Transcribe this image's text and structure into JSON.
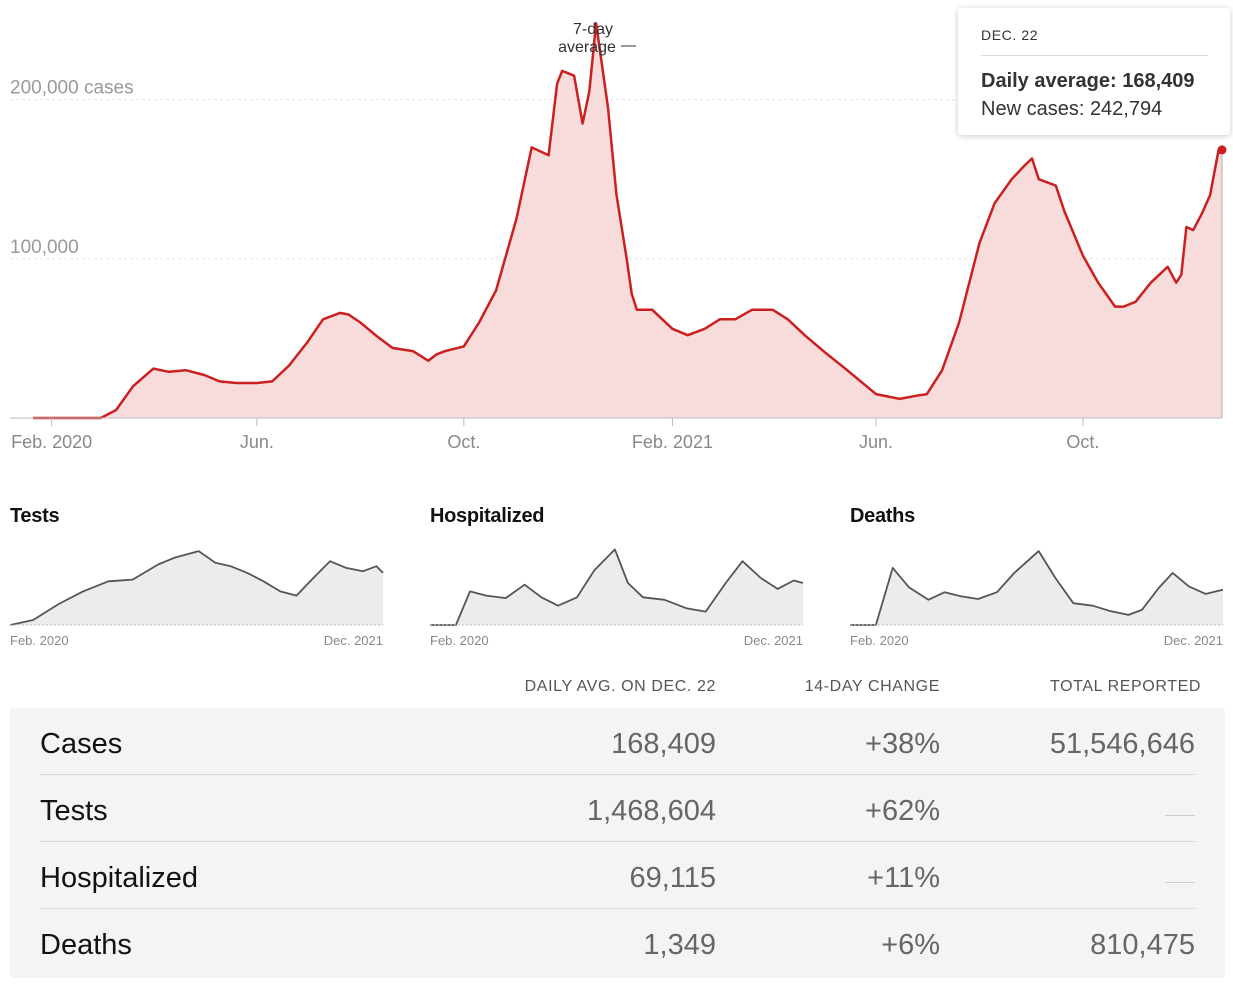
{
  "main_chart": {
    "y_ticks": [
      {
        "value": 200000,
        "label": "200,000 cases"
      },
      {
        "value": 100000,
        "label": "100,000"
      }
    ],
    "x_ticks": [
      {
        "date": "2020-02-01",
        "label": "Feb. 2020"
      },
      {
        "date": "2020-06-01",
        "label": "Jun."
      },
      {
        "date": "2020-10-01",
        "label": "Oct."
      },
      {
        "date": "2021-02-01",
        "label": "Feb. 2021"
      },
      {
        "date": "2021-06-01",
        "label": "Jun."
      },
      {
        "date": "2021-10-01",
        "label": "Oct."
      }
    ],
    "annotation": {
      "line1": "7-day",
      "line2": "average"
    },
    "colors": {
      "line": "#cc1f1f",
      "fill": "#f8dcdc",
      "grid": "#e2e2e2",
      "axis": "#bbbbbb"
    }
  },
  "tooltip": {
    "date": "DEC. 22",
    "avg_label": "Daily average:",
    "avg_value": "168,409",
    "new_label": "New cases:",
    "new_value": "242,794"
  },
  "small_charts": [
    {
      "title": "Tests",
      "start_label": "Feb. 2020",
      "end_label": "Dec. 2021"
    },
    {
      "title": "Hospitalized",
      "start_label": "Feb. 2020",
      "end_label": "Dec. 2021"
    },
    {
      "title": "Deaths",
      "start_label": "Feb. 2020",
      "end_label": "Dec. 2021"
    }
  ],
  "table": {
    "headers": {
      "daily": "DAILY AVG. ON DEC. 22",
      "change": "14-DAY CHANGE",
      "total": "TOTAL REPORTED"
    },
    "rows": [
      {
        "label": "Cases",
        "daily": "168,409",
        "change": "+38%",
        "total": "51,546,646"
      },
      {
        "label": "Tests",
        "daily": "1,468,604",
        "change": "+62%",
        "total": ""
      },
      {
        "label": "Hospitalized",
        "daily": "69,115",
        "change": "+11%",
        "total": ""
      },
      {
        "label": "Deaths",
        "daily": "1,349",
        "change": "+6%",
        "total": "810,475"
      }
    ]
  },
  "chart_data": [
    {
      "type": "area",
      "x_kind": "date",
      "ylim": [
        0,
        250000
      ],
      "xlim": [
        "2020-01-21",
        "2021-12-22"
      ],
      "series": [
        {
          "name": "7-day average",
          "x": [
            "2020-01-21",
            "2020-03-01",
            "2020-03-10",
            "2020-03-20",
            "2020-04-01",
            "2020-04-10",
            "2020-04-20",
            "2020-05-01",
            "2020-05-10",
            "2020-05-20",
            "2020-06-01",
            "2020-06-10",
            "2020-06-20",
            "2020-07-01",
            "2020-07-10",
            "2020-07-20",
            "2020-07-25",
            "2020-08-01",
            "2020-08-10",
            "2020-08-20",
            "2020-09-01",
            "2020-09-10",
            "2020-09-15",
            "2020-09-20",
            "2020-10-01",
            "2020-10-10",
            "2020-10-20",
            "2020-11-01",
            "2020-11-10",
            "2020-11-20",
            "2020-11-25",
            "2020-11-28",
            "2020-12-05",
            "2020-12-10",
            "2020-12-14",
            "2020-12-18",
            "2020-12-25",
            "2020-12-30",
            "2021-01-05",
            "2021-01-08",
            "2021-01-11",
            "2021-01-20",
            "2021-02-01",
            "2021-02-10",
            "2021-02-20",
            "2021-03-01",
            "2021-03-10",
            "2021-03-20",
            "2021-04-01",
            "2021-04-10",
            "2021-04-20",
            "2021-05-01",
            "2021-05-15",
            "2021-06-01",
            "2021-06-15",
            "2021-06-25",
            "2021-07-01",
            "2021-07-10",
            "2021-07-20",
            "2021-08-01",
            "2021-08-10",
            "2021-08-20",
            "2021-08-28",
            "2021-09-01",
            "2021-09-05",
            "2021-09-10",
            "2021-09-15",
            "2021-09-20",
            "2021-10-01",
            "2021-10-10",
            "2021-10-20",
            "2021-10-25",
            "2021-11-01",
            "2021-11-10",
            "2021-11-20",
            "2021-11-25",
            "2021-11-28",
            "2021-12-01",
            "2021-12-05",
            "2021-12-10",
            "2021-12-15",
            "2021-12-20",
            "2021-12-22"
          ],
          "y": [
            0,
            0,
            5000,
            20000,
            31000,
            29000,
            30000,
            27000,
            23000,
            22000,
            22000,
            23000,
            33000,
            48000,
            62000,
            66000,
            65000,
            60000,
            52000,
            44000,
            42000,
            36000,
            40000,
            42000,
            45000,
            60000,
            80000,
            125000,
            170000,
            165000,
            210000,
            218000,
            215000,
            185000,
            205000,
            248000,
            195000,
            140000,
            100000,
            78000,
            68000,
            68000,
            56000,
            52000,
            56000,
            62000,
            62000,
            68000,
            68000,
            62000,
            52000,
            42000,
            30000,
            15000,
            12000,
            14000,
            15000,
            30000,
            60000,
            110000,
            135000,
            150000,
            159000,
            163000,
            150000,
            148000,
            146000,
            130000,
            102000,
            85000,
            70000,
            70000,
            73000,
            85000,
            95000,
            85000,
            90000,
            120000,
            118000,
            128000,
            140000,
            168409,
            168409
          ]
        }
      ]
    },
    {
      "type": "area",
      "title": "Tests",
      "xlim": [
        "2020-02-01",
        "2021-12-22"
      ],
      "ylim": [
        0,
        1000
      ],
      "note": "relative index; no value axis shown",
      "series": [
        {
          "x": [
            "2020-02-01",
            "2020-03-15",
            "2020-05-01",
            "2020-06-15",
            "2020-08-01",
            "2020-09-15",
            "2020-11-01",
            "2020-12-01",
            "2021-01-15",
            "2021-02-15",
            "2021-03-15",
            "2021-04-15",
            "2021-05-15",
            "2021-06-15",
            "2021-07-15",
            "2021-08-15",
            "2021-09-15",
            "2021-10-15",
            "2021-11-15",
            "2021-12-10",
            "2021-12-22"
          ],
          "y": [
            0,
            60,
            250,
            400,
            520,
            540,
            720,
            800,
            880,
            740,
            700,
            620,
            520,
            400,
            350,
            560,
            760,
            680,
            640,
            700,
            620
          ]
        }
      ]
    },
    {
      "type": "area",
      "title": "Hospitalized",
      "xlim": [
        "2020-02-01",
        "2021-12-22"
      ],
      "ylim": [
        0,
        1000
      ],
      "note": "relative index; no value axis shown",
      "series": [
        {
          "x": [
            "2020-02-01",
            "2020-03-20",
            "2020-04-15",
            "2020-05-15",
            "2020-06-20",
            "2020-07-25",
            "2020-08-25",
            "2020-09-25",
            "2020-10-30",
            "2020-12-01",
            "2021-01-08",
            "2021-02-01",
            "2021-03-01",
            "2021-04-10",
            "2021-05-20",
            "2021-06-25",
            "2021-08-01",
            "2021-09-01",
            "2021-10-05",
            "2021-11-05",
            "2021-12-05",
            "2021-12-22"
          ],
          "y": [
            0,
            0,
            400,
            350,
            320,
            480,
            330,
            230,
            330,
            650,
            900,
            500,
            330,
            300,
            200,
            160,
            500,
            760,
            560,
            430,
            530,
            500
          ]
        }
      ]
    },
    {
      "type": "area",
      "title": "Deaths",
      "xlim": [
        "2020-02-01",
        "2021-12-22"
      ],
      "ylim": [
        0,
        1000
      ],
      "note": "relative index; no value axis shown",
      "series": [
        {
          "x": [
            "2020-02-01",
            "2020-03-20",
            "2020-04-20",
            "2020-05-20",
            "2020-06-25",
            "2020-07-25",
            "2020-08-25",
            "2020-09-25",
            "2020-10-30",
            "2020-12-01",
            "2021-01-15",
            "2021-02-15",
            "2021-03-20",
            "2021-04-25",
            "2021-05-25",
            "2021-06-30",
            "2021-07-25",
            "2021-08-25",
            "2021-09-20",
            "2021-10-20",
            "2021-11-20",
            "2021-12-22"
          ],
          "y": [
            0,
            0,
            680,
            450,
            300,
            390,
            340,
            310,
            390,
            620,
            880,
            560,
            260,
            230,
            170,
            120,
            180,
            440,
            620,
            460,
            370,
            420
          ]
        }
      ]
    }
  ]
}
